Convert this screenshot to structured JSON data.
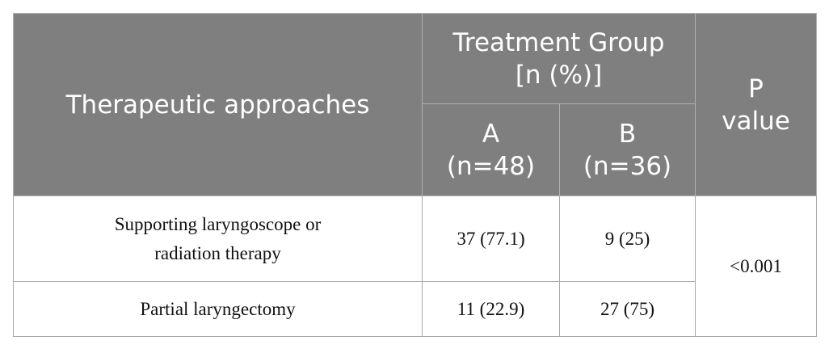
{
  "header": {
    "approach": "Therapeutic approaches",
    "group": "Treatment Group\n[n (%)]",
    "group_a": "A\n(n=48)",
    "group_b": "B\n(n=36)",
    "p_value": "P\nvalue"
  },
  "table": {
    "rows": [
      [
        "Supporting laryngoscope or\nradiation therapy",
        "37 (77.1)",
        "9 (25)"
      ],
      [
        "Partial laryngectomy",
        "11 (22.9)",
        "27 (75)"
      ]
    ],
    "p_value": "<0.001"
  }
}
